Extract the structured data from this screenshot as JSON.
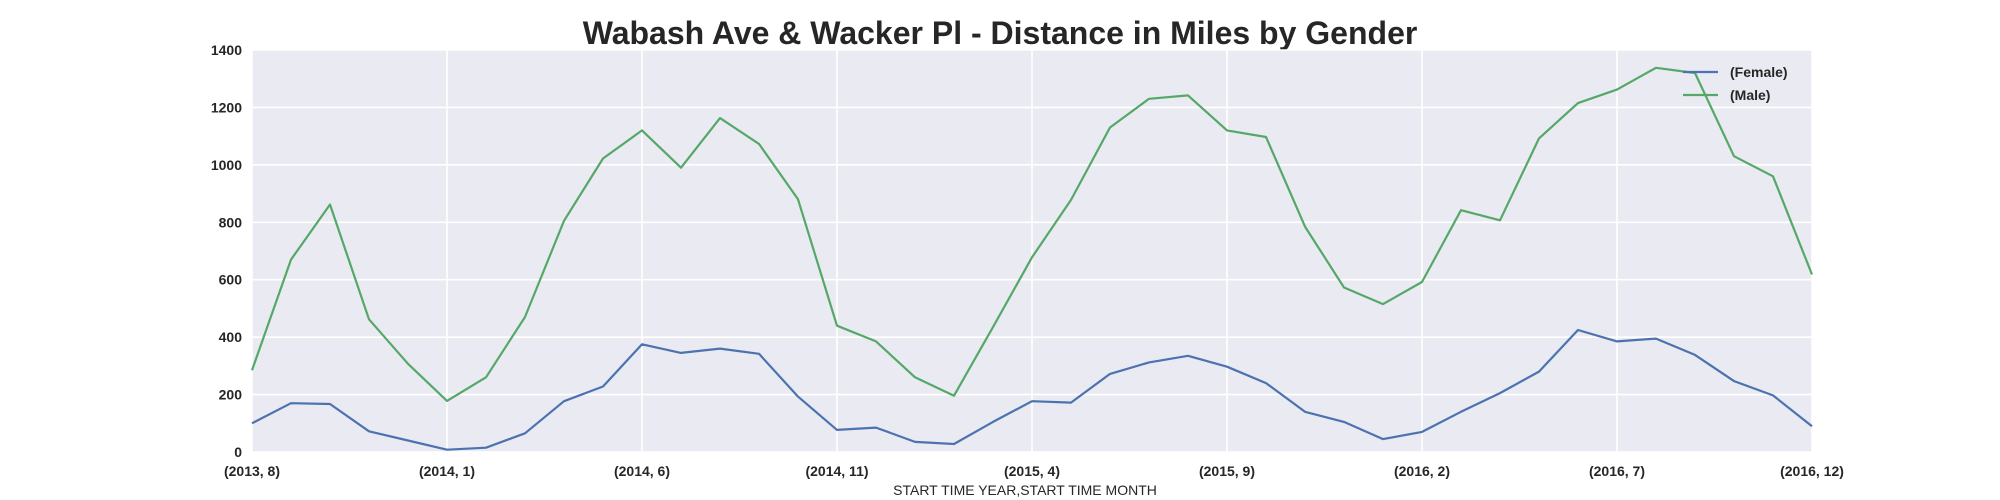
{
  "chart_data": {
    "type": "line",
    "title": "Wabash Ave & Wacker Pl - Distance in Miles by Gender",
    "xlabel": "START TIME YEAR,START TIME MONTH",
    "ylabel": "",
    "ylim": [
      0,
      1400
    ],
    "yticks": [
      0,
      200,
      400,
      600,
      800,
      1000,
      1200,
      1400
    ],
    "x": [
      "(2013, 8)",
      "(2013, 9)",
      "(2013, 10)",
      "(2013, 11)",
      "(2013, 12)",
      "(2014, 1)",
      "(2014, 2)",
      "(2014, 3)",
      "(2014, 4)",
      "(2014, 5)",
      "(2014, 6)",
      "(2014, 7)",
      "(2014, 8)",
      "(2014, 9)",
      "(2014, 10)",
      "(2014, 11)",
      "(2014, 12)",
      "(2015, 1)",
      "(2015, 2)",
      "(2015, 3)",
      "(2015, 4)",
      "(2015, 5)",
      "(2015, 6)",
      "(2015, 7)",
      "(2015, 8)",
      "(2015, 9)",
      "(2015, 10)",
      "(2015, 11)",
      "(2015, 12)",
      "(2016, 1)",
      "(2016, 2)",
      "(2016, 3)",
      "(2016, 4)",
      "(2016, 5)",
      "(2016, 6)",
      "(2016, 7)",
      "(2016, 8)",
      "(2016, 9)",
      "(2016, 10)",
      "(2016, 11)",
      "(2016, 12)"
    ],
    "xtick_labels": [
      "(2013, 8)",
      "(2014, 1)",
      "(2014, 6)",
      "(2014, 11)",
      "(2015, 4)",
      "(2015, 9)",
      "(2016, 2)",
      "(2016, 7)",
      "(2016, 12)"
    ],
    "series": [
      {
        "name": "(Female)",
        "color": "#4c72b0",
        "values": [
          100,
          170,
          167,
          72,
          40,
          8,
          15,
          65,
          177,
          228,
          375,
          345,
          360,
          342,
          193,
          77,
          85,
          35,
          28,
          105,
          177,
          172,
          272,
          312,
          335,
          297,
          240,
          140,
          105,
          45,
          70,
          140,
          205,
          280,
          425,
          385,
          395,
          338,
          247,
          197,
          90
        ]
      },
      {
        "name": "(Male)",
        "color": "#55a868",
        "values": [
          285,
          670,
          862,
          462,
          307,
          178,
          260,
          470,
          805,
          1022,
          1120,
          990,
          1163,
          1073,
          880,
          440,
          385,
          260,
          196,
          435,
          678,
          878,
          1130,
          1230,
          1242,
          1120,
          1097,
          785,
          573,
          515,
          592,
          842,
          807,
          1092,
          1215,
          1262,
          1338,
          1320,
          1030,
          960,
          618
        ]
      }
    ],
    "grid": true,
    "legend": "top-right"
  }
}
